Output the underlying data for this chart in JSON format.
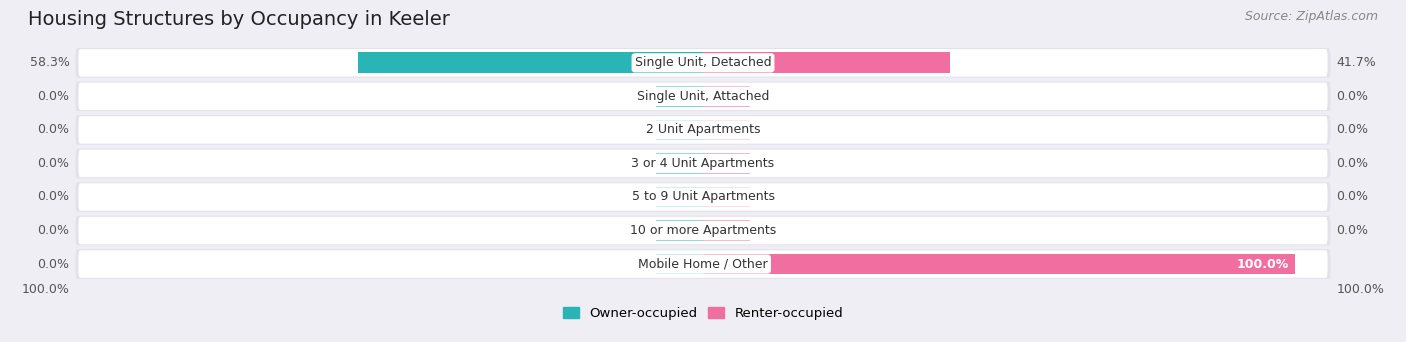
{
  "title": "Housing Structures by Occupancy in Keeler",
  "source": "Source: ZipAtlas.com",
  "categories": [
    "Single Unit, Detached",
    "Single Unit, Attached",
    "2 Unit Apartments",
    "3 or 4 Unit Apartments",
    "5 to 9 Unit Apartments",
    "10 or more Apartments",
    "Mobile Home / Other"
  ],
  "owner_values": [
    58.3,
    0.0,
    0.0,
    0.0,
    0.0,
    0.0,
    0.0
  ],
  "renter_values": [
    41.7,
    0.0,
    0.0,
    0.0,
    0.0,
    0.0,
    100.0
  ],
  "owner_color": "#29b5b5",
  "owner_color_light": "#82d4d4",
  "renter_color": "#f06fa0",
  "renter_color_light": "#f5aac8",
  "background_color": "#eeeef4",
  "row_bg_color": "#e2e2ea",
  "row_inner_color": "#ffffff",
  "title_fontsize": 14,
  "source_fontsize": 9,
  "bar_label_fontsize": 9,
  "cat_label_fontsize": 9,
  "legend_owner": "Owner-occupied",
  "legend_renter": "Renter-occupied",
  "min_stub": 8.0,
  "max_val": 100.0
}
